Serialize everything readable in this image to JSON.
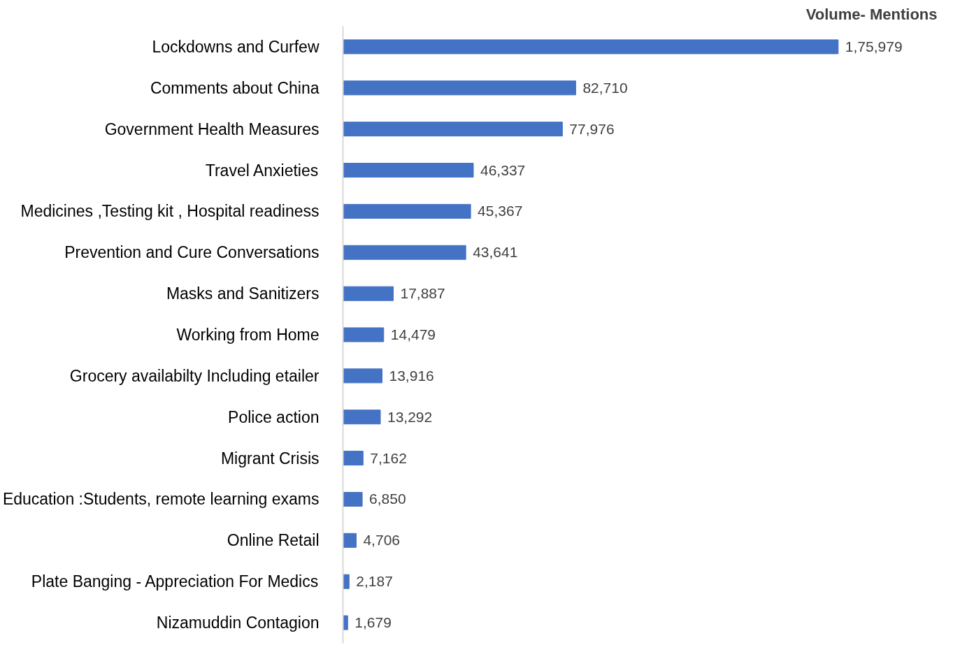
{
  "chart_data": {
    "type": "bar",
    "orientation": "horizontal",
    "title": "Volume- Mentions",
    "color": "#4472c4",
    "categories": [
      "Lockdowns and Curfew",
      "Comments about China",
      "Government Health Measures",
      "Travel Anxieties",
      "Medicines ,Testing kit , Hospital readiness",
      "Prevention and Cure Conversations",
      "Masks and Sanitizers",
      "Working from Home",
      "Grocery availabilty Including etailer",
      "Police action",
      "Migrant Crisis",
      "Education :Students, remote learning exams",
      "Online Retail",
      "Plate Banging - Appreciation For Medics",
      "Nizamuddin Contagion"
    ],
    "values": [
      175979,
      82710,
      77976,
      46337,
      45367,
      43641,
      17887,
      14479,
      13916,
      13292,
      7162,
      6850,
      4706,
      2187,
      1679
    ],
    "value_labels": [
      "1,75,979",
      "82,710",
      "77,976",
      "46,337",
      "45,367",
      "43,641",
      "17,887",
      "14,479",
      "13,916",
      "13,292",
      "7,162",
      "6,850",
      "4,706",
      "2,187",
      "1,679"
    ]
  }
}
